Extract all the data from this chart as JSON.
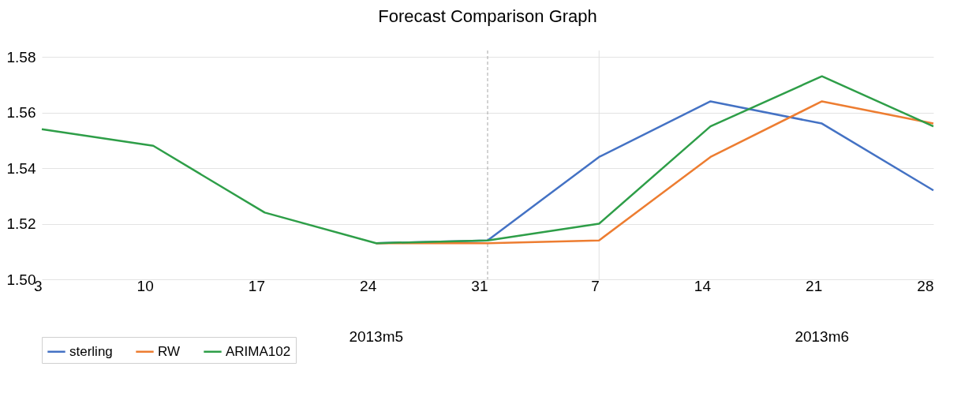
{
  "chart_data": {
    "type": "line",
    "title": "Forecast Comparison Graph",
    "categories": [
      "3",
      "10",
      "17",
      "24",
      "31",
      "7",
      "14",
      "21",
      "28"
    ],
    "series": [
      {
        "name": "sterling",
        "color": "#4472c4",
        "values": [
          null,
          null,
          null,
          1.513,
          1.514,
          1.544,
          1.564,
          1.556,
          1.532
        ]
      },
      {
        "name": "RW",
        "color": "#ed7d31",
        "values": [
          null,
          null,
          null,
          1.513,
          1.513,
          1.514,
          1.544,
          1.564,
          1.556
        ]
      },
      {
        "name": "ARIMA102",
        "color": "#2e9e48",
        "values": [
          1.554,
          1.548,
          1.524,
          1.513,
          1.514,
          1.52,
          1.555,
          1.573,
          1.555
        ]
      }
    ],
    "ylim": [
      1.5,
      1.58
    ],
    "yticks": [
      {
        "value": 1.5,
        "label": "1.50"
      },
      1.52,
      1.54,
      1.56,
      1.58
    ],
    "grid": "y",
    "legend": "bottom",
    "marker": "none",
    "line_style": "solid",
    "ref_lines": [
      {
        "axis": "x",
        "value": "31",
        "color": "#a6a6a6",
        "line_style": "dashed"
      },
      {
        "axis": "x",
        "value": "7",
        "color": "#e0e0e0",
        "line_style": "solid"
      }
    ],
    "annotations": [
      "2013m5",
      "2013m6"
    ]
  }
}
